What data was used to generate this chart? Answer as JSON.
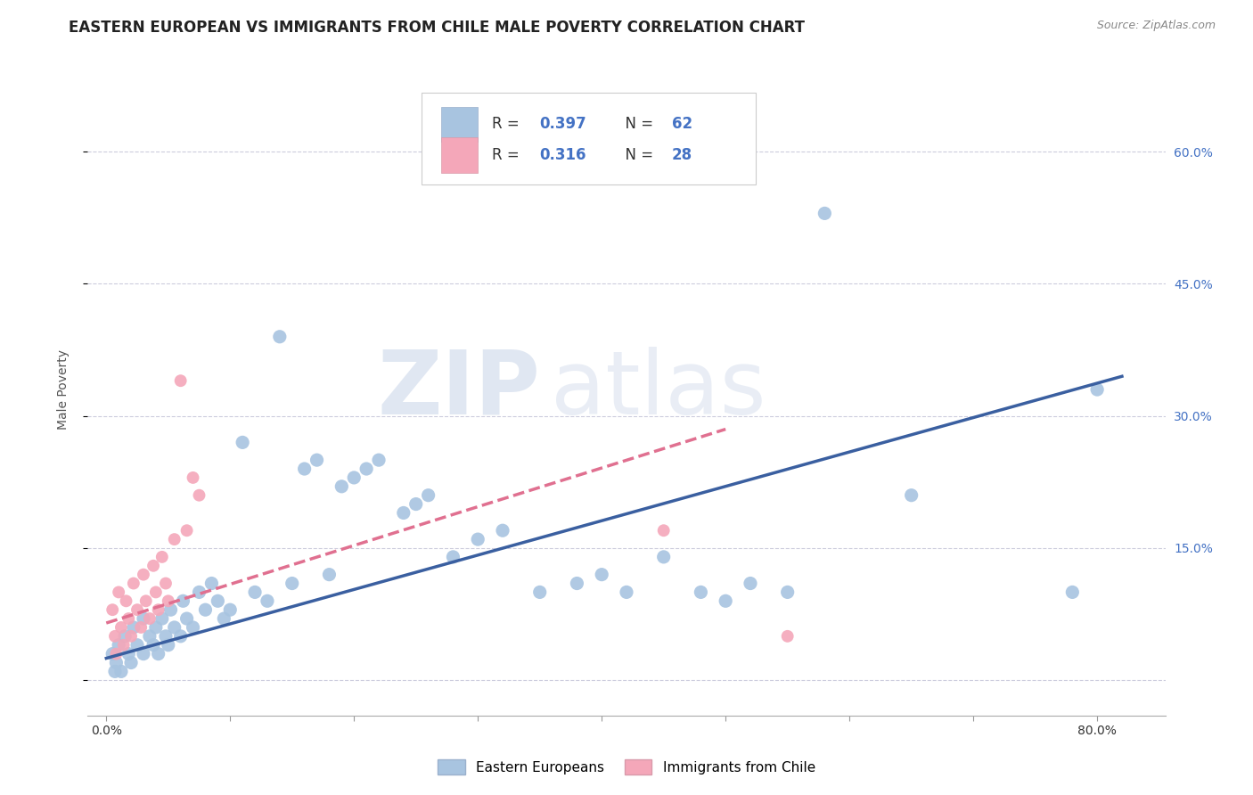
{
  "title": "EASTERN EUROPEAN VS IMMIGRANTS FROM CHILE MALE POVERTY CORRELATION CHART",
  "source": "Source: ZipAtlas.com",
  "ylabel": "Male Poverty",
  "watermark_zip": "ZIP",
  "watermark_atlas": "atlas",
  "x_ticks": [
    0.0,
    0.1,
    0.2,
    0.3,
    0.4,
    0.5,
    0.6,
    0.7,
    0.8
  ],
  "y_ticks": [
    0.0,
    0.15,
    0.3,
    0.45,
    0.6
  ],
  "xlim": [
    -0.015,
    0.855
  ],
  "ylim": [
    -0.04,
    0.7
  ],
  "blue_R": "0.397",
  "blue_N": "62",
  "pink_R": "0.316",
  "pink_N": "28",
  "blue_color": "#a8c4e0",
  "pink_color": "#f4a7b9",
  "blue_line_color": "#3a5fa0",
  "pink_line_color": "#e07090",
  "background_color": "#ffffff",
  "grid_color": "#ccccdd",
  "legend_label_blue": "Eastern Europeans",
  "legend_label_pink": "Immigrants from Chile",
  "title_fontsize": 12,
  "axis_label_fontsize": 10,
  "tick_fontsize": 10,
  "legend_fontsize": 12,
  "marker_size_blue": 120,
  "marker_size_pink": 100,
  "blue_scatter_x": [
    0.005,
    0.007,
    0.008,
    0.01,
    0.012,
    0.015,
    0.018,
    0.02,
    0.022,
    0.025,
    0.03,
    0.03,
    0.035,
    0.038,
    0.04,
    0.042,
    0.045,
    0.048,
    0.05,
    0.052,
    0.055,
    0.06,
    0.062,
    0.065,
    0.07,
    0.075,
    0.08,
    0.085,
    0.09,
    0.095,
    0.1,
    0.11,
    0.12,
    0.13,
    0.14,
    0.15,
    0.16,
    0.17,
    0.18,
    0.19,
    0.2,
    0.21,
    0.22,
    0.24,
    0.25,
    0.26,
    0.28,
    0.3,
    0.32,
    0.35,
    0.38,
    0.4,
    0.42,
    0.45,
    0.48,
    0.5,
    0.52,
    0.55,
    0.58,
    0.65,
    0.78,
    0.8
  ],
  "blue_scatter_y": [
    0.03,
    0.01,
    0.02,
    0.04,
    0.01,
    0.05,
    0.03,
    0.02,
    0.06,
    0.04,
    0.03,
    0.07,
    0.05,
    0.04,
    0.06,
    0.03,
    0.07,
    0.05,
    0.04,
    0.08,
    0.06,
    0.05,
    0.09,
    0.07,
    0.06,
    0.1,
    0.08,
    0.11,
    0.09,
    0.07,
    0.08,
    0.27,
    0.1,
    0.09,
    0.39,
    0.11,
    0.24,
    0.25,
    0.12,
    0.22,
    0.23,
    0.24,
    0.25,
    0.19,
    0.2,
    0.21,
    0.14,
    0.16,
    0.17,
    0.1,
    0.11,
    0.12,
    0.1,
    0.14,
    0.1,
    0.09,
    0.11,
    0.1,
    0.53,
    0.21,
    0.1,
    0.33
  ],
  "pink_scatter_x": [
    0.005,
    0.007,
    0.008,
    0.01,
    0.012,
    0.014,
    0.016,
    0.018,
    0.02,
    0.022,
    0.025,
    0.028,
    0.03,
    0.032,
    0.035,
    0.038,
    0.04,
    0.042,
    0.045,
    0.048,
    0.05,
    0.055,
    0.06,
    0.065,
    0.07,
    0.075,
    0.45,
    0.55
  ],
  "pink_scatter_y": [
    0.08,
    0.05,
    0.03,
    0.1,
    0.06,
    0.04,
    0.09,
    0.07,
    0.05,
    0.11,
    0.08,
    0.06,
    0.12,
    0.09,
    0.07,
    0.13,
    0.1,
    0.08,
    0.14,
    0.11,
    0.09,
    0.16,
    0.34,
    0.17,
    0.23,
    0.21,
    0.17,
    0.05
  ],
  "blue_line_x": [
    0.0,
    0.82
  ],
  "blue_line_y": [
    0.025,
    0.345
  ],
  "pink_line_x": [
    0.0,
    0.5
  ],
  "pink_line_y": [
    0.065,
    0.285
  ]
}
